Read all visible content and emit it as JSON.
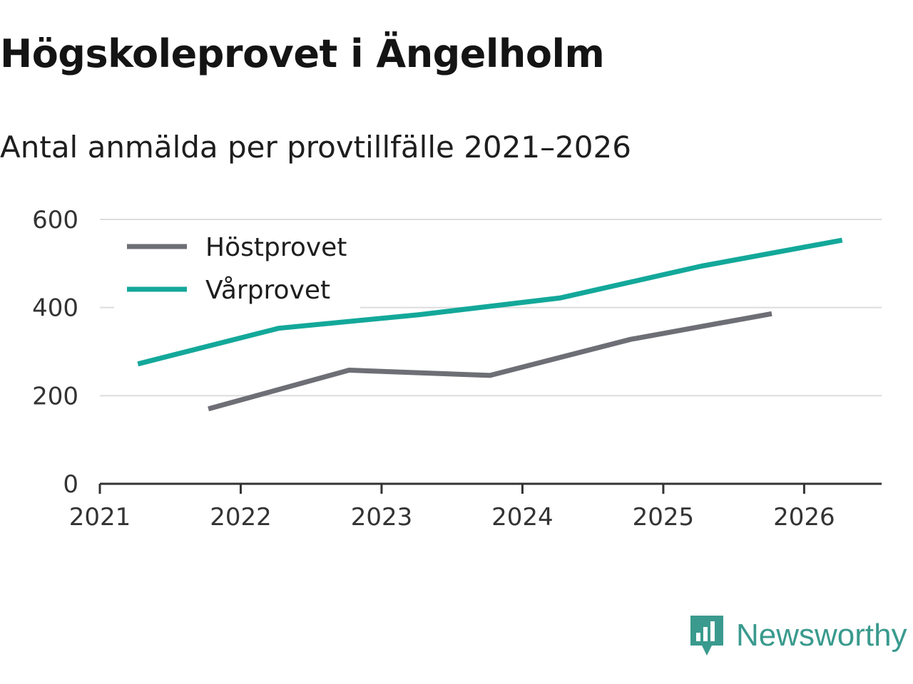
{
  "header": {
    "title": "Högskoleprovet i Ängelholm",
    "subtitle": "Antal anmälda per provtillfälle 2021–2026"
  },
  "brand": {
    "name": "Newsworthy",
    "icon": "newsworthy-logo-icon",
    "color": "#3a9a8e"
  },
  "chart_data": {
    "type": "line",
    "title": "Högskoleprovet i Ängelholm",
    "subtitle": "Antal anmälda per provtillfälle 2021–2026",
    "xlabel": "",
    "ylabel": "",
    "xlim": [
      2021,
      2026.55
    ],
    "ylim": [
      0,
      600
    ],
    "x_ticks": [
      "2021",
      "2022",
      "2023",
      "2024",
      "2025",
      "2026"
    ],
    "y_ticks": [
      "0",
      "200",
      "400",
      "600"
    ],
    "grid": true,
    "legend_position": "top-left",
    "series": [
      {
        "name": "Höstprovet",
        "color": "#6e6e76",
        "x": [
          2021.77,
          2022.77,
          2023.77,
          2024.77,
          2025.77
        ],
        "values": [
          170,
          258,
          246,
          328,
          386
        ]
      },
      {
        "name": "Vårprovet",
        "color": "#13a89a",
        "x": [
          2021.27,
          2022.27,
          2023.27,
          2024.27,
          2025.27,
          2026.27
        ],
        "values": [
          272,
          353,
          384,
          422,
          494,
          553
        ]
      }
    ]
  }
}
